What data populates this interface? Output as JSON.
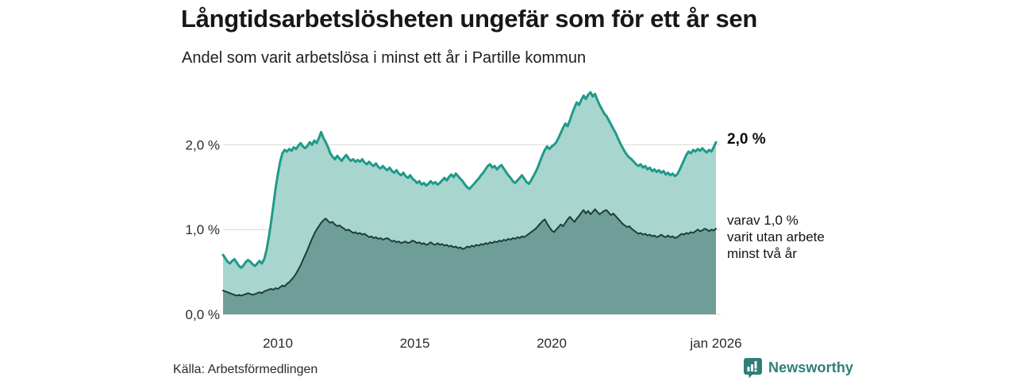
{
  "header": {
    "title": "Långtidsarbetslösheten ungefär som för ett år sen",
    "subtitle": "Andel som varit arbetslösa i minst ett år i Partille kommun"
  },
  "source": {
    "label": "Källa: Arbetsförmedlingen"
  },
  "branding": {
    "logo_text": "Newsworthy",
    "color": "#2f7e77"
  },
  "chart_data": {
    "type": "area",
    "title": "Långtidsarbetslösheten ungefär som för ett år sen",
    "subtitle": "Andel som varit arbetslösa i minst ett år i Partille kommun",
    "x_start_year": 2008,
    "x_end_label": "jan 2026",
    "frequency": "monthly",
    "ylim": [
      0,
      2.7
    ],
    "grid": true,
    "y_ticks": [
      {
        "label": "0,0 %",
        "value": 0
      },
      {
        "label": "1,0 %",
        "value": 1
      },
      {
        "label": "2,0 %",
        "value": 2
      }
    ],
    "x_ticks": [
      {
        "label": "2010",
        "year": 2010
      },
      {
        "label": "2015",
        "year": 2015
      },
      {
        "label": "2020",
        "year": 2020
      },
      {
        "label": "jan 2026",
        "year": 2026
      }
    ],
    "series": [
      {
        "name": "Andel som varit arbetslösa i minst ett år",
        "line_color": "#1f9a8a",
        "fill_color": "#a8d5cd",
        "line_width": 3,
        "values": [
          0.7,
          0.66,
          0.62,
          0.6,
          0.63,
          0.65,
          0.61,
          0.57,
          0.55,
          0.58,
          0.62,
          0.64,
          0.62,
          0.59,
          0.57,
          0.6,
          0.63,
          0.6,
          0.65,
          0.75,
          0.9,
          1.08,
          1.28,
          1.48,
          1.65,
          1.8,
          1.9,
          1.94,
          1.92,
          1.95,
          1.93,
          1.97,
          1.95,
          1.99,
          2.02,
          1.98,
          1.96,
          1.99,
          2.03,
          2.0,
          2.05,
          2.02,
          2.08,
          2.15,
          2.08,
          2.03,
          1.97,
          1.9,
          1.86,
          1.83,
          1.87,
          1.84,
          1.81,
          1.85,
          1.88,
          1.84,
          1.81,
          1.83,
          1.8,
          1.82,
          1.8,
          1.83,
          1.79,
          1.77,
          1.8,
          1.77,
          1.75,
          1.78,
          1.74,
          1.72,
          1.75,
          1.72,
          1.7,
          1.73,
          1.69,
          1.67,
          1.7,
          1.66,
          1.64,
          1.67,
          1.63,
          1.61,
          1.64,
          1.6,
          1.58,
          1.55,
          1.57,
          1.53,
          1.55,
          1.52,
          1.54,
          1.57,
          1.54,
          1.56,
          1.53,
          1.55,
          1.58,
          1.61,
          1.58,
          1.62,
          1.65,
          1.62,
          1.66,
          1.63,
          1.6,
          1.57,
          1.53,
          1.5,
          1.48,
          1.51,
          1.54,
          1.57,
          1.6,
          1.64,
          1.67,
          1.71,
          1.75,
          1.77,
          1.73,
          1.75,
          1.71,
          1.74,
          1.76,
          1.72,
          1.68,
          1.64,
          1.61,
          1.57,
          1.55,
          1.58,
          1.61,
          1.64,
          1.6,
          1.56,
          1.54,
          1.58,
          1.63,
          1.68,
          1.74,
          1.81,
          1.88,
          1.94,
          1.98,
          1.95,
          1.98,
          2.0,
          2.03,
          2.08,
          2.14,
          2.2,
          2.25,
          2.22,
          2.29,
          2.37,
          2.44,
          2.5,
          2.47,
          2.53,
          2.58,
          2.54,
          2.59,
          2.62,
          2.57,
          2.6,
          2.53,
          2.47,
          2.42,
          2.37,
          2.34,
          2.29,
          2.24,
          2.19,
          2.14,
          2.08,
          2.02,
          1.97,
          1.92,
          1.88,
          1.85,
          1.83,
          1.8,
          1.77,
          1.75,
          1.77,
          1.73,
          1.75,
          1.71,
          1.73,
          1.69,
          1.71,
          1.68,
          1.7,
          1.67,
          1.69,
          1.65,
          1.67,
          1.64,
          1.66,
          1.63,
          1.65,
          1.7,
          1.76,
          1.82,
          1.88,
          1.92,
          1.9,
          1.94,
          1.92,
          1.95,
          1.93,
          1.96,
          1.93,
          1.91,
          1.94,
          1.92,
          1.97,
          2.03
        ]
      },
      {
        "name": "varav utan arbete minst två år",
        "line_color": "#1e3e3a",
        "fill_color": "#6f9e98",
        "line_width": 2,
        "values": [
          0.28,
          0.27,
          0.26,
          0.25,
          0.24,
          0.23,
          0.22,
          0.23,
          0.22,
          0.23,
          0.24,
          0.25,
          0.24,
          0.23,
          0.24,
          0.25,
          0.26,
          0.25,
          0.27,
          0.28,
          0.29,
          0.3,
          0.29,
          0.31,
          0.3,
          0.32,
          0.34,
          0.33,
          0.36,
          0.38,
          0.41,
          0.44,
          0.48,
          0.53,
          0.58,
          0.64,
          0.7,
          0.76,
          0.83,
          0.89,
          0.95,
          1.0,
          1.04,
          1.08,
          1.11,
          1.13,
          1.1,
          1.08,
          1.09,
          1.06,
          1.04,
          1.05,
          1.03,
          1.01,
          0.99,
          1.0,
          0.98,
          0.96,
          0.97,
          0.95,
          0.96,
          0.94,
          0.95,
          0.93,
          0.91,
          0.92,
          0.9,
          0.91,
          0.89,
          0.9,
          0.88,
          0.89,
          0.9,
          0.88,
          0.86,
          0.87,
          0.85,
          0.86,
          0.84,
          0.85,
          0.86,
          0.84,
          0.85,
          0.87,
          0.86,
          0.84,
          0.85,
          0.83,
          0.84,
          0.82,
          0.83,
          0.85,
          0.83,
          0.82,
          0.84,
          0.82,
          0.83,
          0.81,
          0.82,
          0.8,
          0.81,
          0.79,
          0.8,
          0.78,
          0.79,
          0.77,
          0.78,
          0.8,
          0.79,
          0.81,
          0.8,
          0.82,
          0.81,
          0.83,
          0.82,
          0.84,
          0.83,
          0.85,
          0.84,
          0.86,
          0.85,
          0.87,
          0.86,
          0.88,
          0.87,
          0.89,
          0.88,
          0.9,
          0.89,
          0.91,
          0.9,
          0.92,
          0.91,
          0.93,
          0.95,
          0.97,
          0.99,
          1.01,
          1.04,
          1.07,
          1.1,
          1.12,
          1.07,
          1.03,
          0.99,
          0.97,
          1.0,
          1.03,
          1.06,
          1.04,
          1.08,
          1.12,
          1.15,
          1.12,
          1.09,
          1.13,
          1.16,
          1.2,
          1.23,
          1.19,
          1.22,
          1.18,
          1.21,
          1.24,
          1.21,
          1.18,
          1.2,
          1.22,
          1.23,
          1.2,
          1.17,
          1.19,
          1.16,
          1.13,
          1.1,
          1.07,
          1.05,
          1.03,
          1.04,
          1.01,
          0.99,
          0.97,
          0.95,
          0.96,
          0.94,
          0.95,
          0.93,
          0.94,
          0.92,
          0.93,
          0.91,
          0.92,
          0.94,
          0.92,
          0.91,
          0.93,
          0.91,
          0.92,
          0.9,
          0.91,
          0.93,
          0.95,
          0.94,
          0.96,
          0.95,
          0.97,
          0.96,
          0.98,
          1.0,
          0.98,
          0.99,
          1.01,
          1.0,
          0.98,
          1.0,
          0.99,
          1.01
        ]
      }
    ],
    "annotations": {
      "latest_total": {
        "text": "2,0 %"
      },
      "latest_sub": {
        "lines": [
          "varav 1,0 %",
          "varit utan arbete",
          "minst två år"
        ]
      }
    },
    "grid_color": "#d9d9d9"
  }
}
